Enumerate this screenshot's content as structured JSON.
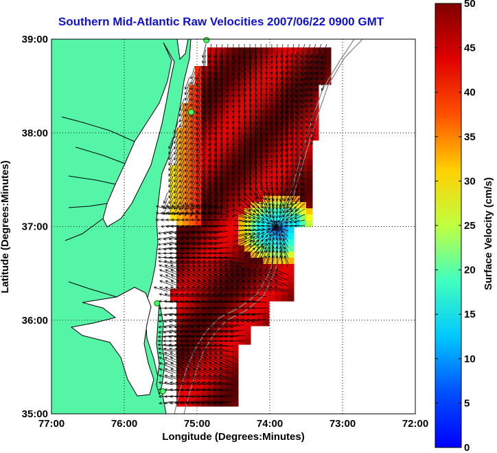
{
  "title": "Southern Mid-Atlantic Raw Velocities 2007/06/22 0900 GMT",
  "map": {
    "xlabel": "Longitude (Degrees:Minutes)",
    "ylabel": "Latitude (Degrees:Minutes)",
    "lon_range": [
      -77,
      -72
    ],
    "lat_range": [
      35,
      39
    ],
    "x_ticks": [
      "77:00",
      "76:00",
      "75:00",
      "74:00",
      "73:00",
      "72:00"
    ],
    "y_ticks": [
      "35:00",
      "36:00",
      "37:00",
      "38:00",
      "39:00"
    ],
    "grid": "dotted",
    "land_color": "#55f5a8",
    "coastline_color": "#000000",
    "bathymetry_color": "#8a8a8a",
    "arrow_color": "#000000",
    "stations": [
      {
        "lon": -74.87,
        "lat": 38.99
      },
      {
        "lon": -75.08,
        "lat": 38.22
      },
      {
        "lon": -75.55,
        "lat": 36.18
      },
      {
        "lon": -75.47,
        "lat": 35.24
      }
    ]
  },
  "colorbar": {
    "label": "Surface Velocity (cm/s)",
    "min": 0,
    "max": 50,
    "ticks": [
      "0",
      "5",
      "10",
      "15",
      "20",
      "25",
      "30",
      "35",
      "40",
      "45",
      "50"
    ],
    "colormap": "jet"
  }
}
